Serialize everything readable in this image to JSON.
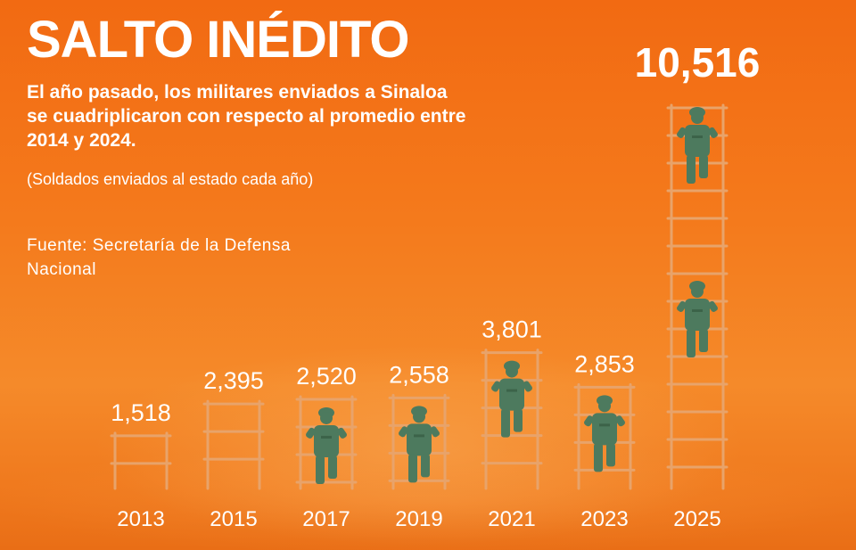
{
  "header": {
    "title": "SALTO INÉDITO",
    "subtitle": "El año pasado, los militares enviados a Sinaloa se cuadriplicaron con respecto al promedio entre 2014 y 2024.",
    "note": "(Soldados enviados al estado cada año)",
    "source": "Fuente: Secretaría de la Defensa Nacional"
  },
  "colors": {
    "background": "#f47a1c",
    "ladder": "#e8a36a",
    "soldier": "#4d7a5e",
    "text": "#ffffff"
  },
  "chart_data": {
    "type": "bar",
    "categories": [
      "2013",
      "2015",
      "2017",
      "2019",
      "2021",
      "2023",
      "2025"
    ],
    "values": [
      1518,
      2395,
      2520,
      2558,
      3801,
      2853,
      10516
    ],
    "value_labels": [
      "1,518",
      "2,395",
      "2,520",
      "2,558",
      "3,801",
      "2,853",
      "10,516"
    ],
    "soldiers": [
      0,
      0,
      1,
      1,
      1,
      1,
      2
    ],
    "title": "SALTO INÉDITO",
    "xlabel": "",
    "ylabel": "",
    "ylim": [
      0,
      11000
    ],
    "grid": false,
    "legend": "none"
  }
}
